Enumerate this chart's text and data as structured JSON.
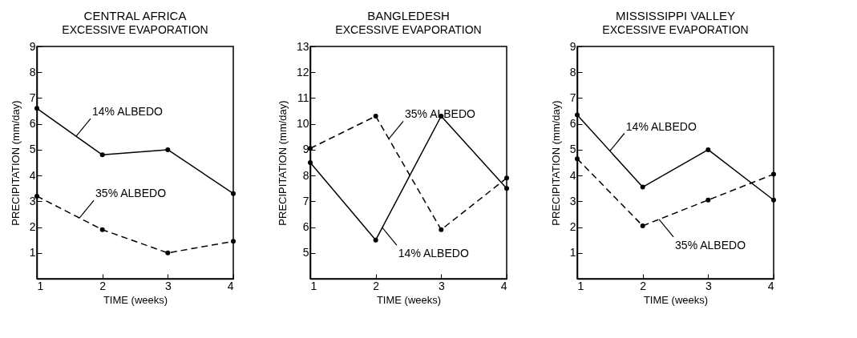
{
  "chart_data": [
    {
      "type": "line",
      "title": "CENTRAL AFRICA",
      "subtitle": "EXCESSIVE EVAPORATION",
      "xlabel": "TIME (weeks)",
      "ylabel": "PRECIPITATION (mm/day)",
      "x": [
        1,
        2,
        3,
        4
      ],
      "xlim": [
        1,
        4
      ],
      "xticks": [
        1,
        2,
        3,
        4
      ],
      "ylim": [
        0,
        9
      ],
      "yticks": [
        1,
        2,
        3,
        4,
        5,
        6,
        7,
        8,
        9
      ],
      "grid": false,
      "marker": "circle",
      "series": [
        {
          "color": "#000000",
          "line_style": "solid",
          "values": [
            6.6,
            4.8,
            5.0,
            3.3
          ]
        },
        {
          "color": "#000000",
          "line_style": "dashed",
          "values": [
            3.2,
            1.9,
            1.0,
            1.45
          ]
        }
      ],
      "annotations": [
        {
          "text": "14% ALBEDO",
          "x": 1.6,
          "y": 5.52
        },
        {
          "text": "35% ALBEDO",
          "x": 1.65,
          "y": 2.355
        }
      ]
    },
    {
      "type": "line",
      "title": "BANGLEDESH",
      "subtitle": "EXCESSIVE EVAPORATION",
      "xlabel": "TIME (weeks)",
      "ylabel": "PRECIPITATION (mm/day)",
      "x": [
        1,
        2,
        3,
        4
      ],
      "xlim": [
        1,
        4
      ],
      "xticks": [
        1,
        2,
        3,
        4
      ],
      "ylim": [
        4,
        13
      ],
      "yticks": [
        5,
        6,
        7,
        8,
        9,
        10,
        11,
        12,
        13
      ],
      "grid": false,
      "marker": "circle",
      "series": [
        {
          "color": "#000000",
          "line_style": "solid",
          "values": [
            8.5,
            5.5,
            10.3,
            7.5
          ]
        },
        {
          "color": "#000000",
          "line_style": "dashed",
          "values": [
            9.05,
            10.3,
            5.9,
            7.9
          ]
        }
      ],
      "annotations": [
        {
          "text": "35% ALBEDO",
          "x": 2.2,
          "y": 9.42
        },
        {
          "text": "14% ALBEDO",
          "x": 2.1,
          "y": 5.98
        }
      ]
    },
    {
      "type": "line",
      "title": "MISSISSIPPI VALLEY",
      "subtitle": "EXCESSIVE EVAPORATION",
      "xlabel": "TIME (weeks)",
      "ylabel": "PRECIPITATION (mm/day)",
      "x": [
        1,
        2,
        3,
        4
      ],
      "xlim": [
        1,
        4
      ],
      "xticks": [
        1,
        2,
        3,
        4
      ],
      "ylim": [
        0,
        9
      ],
      "yticks": [
        1,
        2,
        3,
        4,
        5,
        6,
        7,
        8,
        9
      ],
      "grid": false,
      "marker": "circle",
      "series": [
        {
          "color": "#000000",
          "line_style": "solid",
          "values": [
            6.35,
            3.55,
            5.0,
            3.05
          ]
        },
        {
          "color": "#000000",
          "line_style": "dashed",
          "values": [
            4.65,
            2.05,
            3.05,
            4.05
          ]
        }
      ],
      "annotations": [
        {
          "text": "14% ALBEDO",
          "x": 1.5,
          "y": 4.95
        },
        {
          "text": "35% ALBEDO",
          "x": 2.25,
          "y": 2.3
        }
      ]
    }
  ]
}
